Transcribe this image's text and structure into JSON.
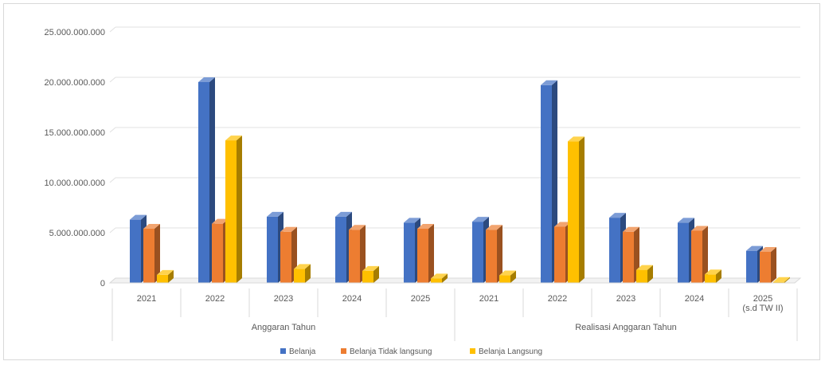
{
  "chart_data": {
    "type": "bar",
    "title": "",
    "ylim": [
      0,
      25000000000
    ],
    "y_ticks": [
      "0",
      "5.000.000.000",
      "10.000.000.000",
      "15.000.000.000",
      "20.000.000.000",
      "25.000.000.000"
    ],
    "grid": true,
    "legend_position": "bottom",
    "groups": [
      {
        "label": "Anggaran Tahun",
        "categories": [
          "2021",
          "2022",
          "2023",
          "2024",
          "2025"
        ]
      },
      {
        "label": "Realisasi Anggaran Tahun",
        "categories": [
          "2021",
          "2022",
          "2023",
          "2024",
          "2025",
          "(s.d TW II)"
        ]
      }
    ],
    "category_labels": [
      [
        "2021"
      ],
      [
        "2022"
      ],
      [
        "2023"
      ],
      [
        "2024"
      ],
      [
        "2025"
      ],
      [
        "2021"
      ],
      [
        "2022"
      ],
      [
        "2023"
      ],
      [
        "2024"
      ],
      [
        "2025",
        "(s.d TW II)"
      ]
    ],
    "series": [
      {
        "name": "Belanja",
        "color": "#4472c4",
        "values": [
          6300000000,
          20000000000,
          6600000000,
          6600000000,
          6000000000,
          6100000000,
          19700000000,
          6500000000,
          6000000000,
          3200000000
        ]
      },
      {
        "name": "Belanja Tidak langsung",
        "color": "#ed7d31",
        "values": [
          5400000000,
          5900000000,
          5100000000,
          5300000000,
          5400000000,
          5300000000,
          5600000000,
          5100000000,
          5200000000,
          3100000000
        ]
      },
      {
        "name": "Belanja Langsung",
        "color": "#ffc000",
        "values": [
          800000000,
          14200000000,
          1400000000,
          1200000000,
          450000000,
          750000000,
          14100000000,
          1300000000,
          850000000,
          100000000
        ]
      }
    ]
  }
}
